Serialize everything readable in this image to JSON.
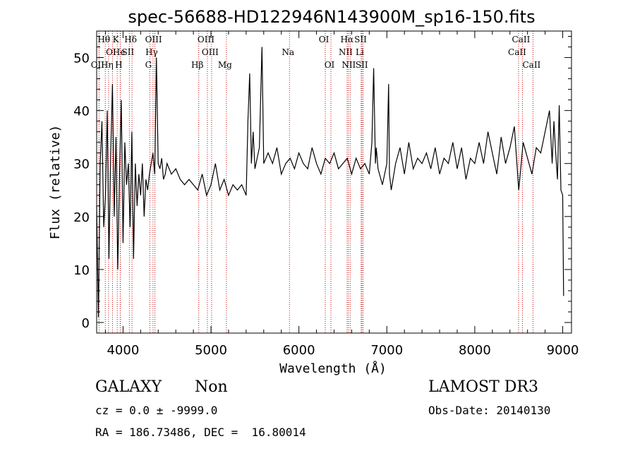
{
  "chart_data": {
    "type": "line",
    "title": "spec-56688-HD122946N143900M_sp16-150.fits",
    "xlabel": "Wavelength (Å)",
    "ylabel": "Flux (relative)",
    "xlim": [
      3700,
      9100
    ],
    "ylim": [
      -2,
      55
    ],
    "xticks": [
      4000,
      5000,
      6000,
      7000,
      8000,
      9000
    ],
    "yticks": [
      0,
      10,
      20,
      30,
      40,
      50
    ],
    "grid": false,
    "series": [
      {
        "color": "#000000",
        "x": [
          3700,
          3720,
          3740,
          3760,
          3780,
          3800,
          3820,
          3840,
          3860,
          3880,
          3900,
          3920,
          3940,
          3960,
          3980,
          4000,
          4020,
          4040,
          4060,
          4080,
          4100,
          4120,
          4140,
          4160,
          4180,
          4200,
          4220,
          4240,
          4260,
          4280,
          4300,
          4320,
          4340,
          4360,
          4380,
          4400,
          4420,
          4440,
          4460,
          4480,
          4500,
          4550,
          4600,
          4650,
          4700,
          4750,
          4800,
          4850,
          4900,
          4950,
          5000,
          5050,
          5100,
          5150,
          5200,
          5250,
          5300,
          5350,
          5400,
          5420,
          5440,
          5460,
          5480,
          5500,
          5550,
          5580,
          5600,
          5650,
          5700,
          5750,
          5800,
          5850,
          5900,
          5950,
          6000,
          6050,
          6100,
          6150,
          6200,
          6250,
          6300,
          6350,
          6400,
          6450,
          6500,
          6550,
          6600,
          6650,
          6700,
          6750,
          6800,
          6830,
          6850,
          6870,
          6880,
          6900,
          6950,
          7000,
          7020,
          7030,
          7050,
          7100,
          7150,
          7200,
          7250,
          7300,
          7350,
          7400,
          7450,
          7500,
          7550,
          7600,
          7650,
          7700,
          7750,
          7800,
          7850,
          7900,
          7950,
          8000,
          8050,
          8100,
          8150,
          8200,
          8250,
          8300,
          8350,
          8400,
          8450,
          8500,
          8550,
          8600,
          8650,
          8700,
          8750,
          8800,
          8850,
          8880,
          8900,
          8920,
          8940,
          8960,
          8980,
          9000,
          9010
        ],
        "y": [
          22,
          1,
          30,
          38,
          18,
          24,
          40,
          12,
          32,
          45,
          20,
          35,
          10,
          28,
          42,
          15,
          34,
          26,
          30,
          18,
          36,
          12,
          30,
          22,
          28,
          24,
          30,
          20,
          27,
          25,
          28,
          30,
          32,
          28,
          50,
          30,
          29,
          31,
          27,
          28,
          30,
          28,
          29,
          27,
          26,
          27,
          26,
          25,
          28,
          24,
          26,
          30,
          25,
          27,
          24,
          26,
          25,
          26,
          24,
          38,
          47,
          30,
          36,
          29,
          33,
          52,
          30,
          32,
          30,
          33,
          28,
          30,
          31,
          29,
          32,
          30,
          29,
          33,
          30,
          28,
          31,
          30,
          32,
          29,
          30,
          31,
          28,
          31,
          29,
          30,
          28,
          34,
          48,
          30,
          33,
          29,
          26,
          30,
          45,
          28,
          25,
          30,
          33,
          28,
          34,
          29,
          31,
          30,
          32,
          29,
          33,
          28,
          31,
          30,
          34,
          29,
          33,
          27,
          31,
          30,
          34,
          30,
          36,
          32,
          28,
          35,
          30,
          33,
          37,
          25,
          34,
          31,
          28,
          33,
          32,
          36,
          40,
          30,
          38,
          32,
          27,
          41,
          25,
          24,
          5
        ],
        "label_points": [
          3700,
          3705,
          3710,
          3900,
          4000,
          4380,
          5460,
          5580,
          6870,
          7030
        ]
      }
    ],
    "lines": [
      {
        "name": "Hθ",
        "x": 3798,
        "row": 0
      },
      {
        "name": "OI",
        "x": 3880,
        "row": 1
      },
      {
        "name": "OII",
        "x": 3727,
        "row": 2
      },
      {
        "name": "He",
        "x": 3970,
        "row": 1
      },
      {
        "name": "Hη",
        "x": 3835,
        "row": 2
      },
      {
        "name": "K",
        "x": 3934,
        "row": 0
      },
      {
        "name": "H",
        "x": 3968,
        "row": 2
      },
      {
        "name": "SII",
        "x": 4072,
        "row": 1
      },
      {
        "name": "Hδ",
        "x": 4102,
        "row": 0
      },
      {
        "name": "OIII",
        "x": 4363,
        "row": 0
      },
      {
        "name": "Hγ",
        "x": 4341,
        "row": 1
      },
      {
        "name": "G",
        "x": 4305,
        "row": 2
      },
      {
        "name": "OIII",
        "x": 4959,
        "row": 0
      },
      {
        "name": "OIII",
        "x": 5007,
        "row": 1
      },
      {
        "name": "Hβ",
        "x": 4861,
        "row": 2
      },
      {
        "name": "Mg",
        "x": 5175,
        "row": 2
      },
      {
        "name": "Na",
        "x": 5893,
        "row": 1
      },
      {
        "name": "OI",
        "x": 6300,
        "row": 0
      },
      {
        "name": "OI",
        "x": 6364,
        "row": 2
      },
      {
        "name": "Hα",
        "x": 6563,
        "row": 0
      },
      {
        "name": "NII",
        "x": 6548,
        "row": 1
      },
      {
        "name": "NII",
        "x": 6583,
        "row": 2
      },
      {
        "name": "SII",
        "x": 6717,
        "row": 0
      },
      {
        "name": "Li",
        "x": 6708,
        "row": 1
      },
      {
        "name": "SII",
        "x": 6731,
        "row": 2
      },
      {
        "name": "CaII",
        "x": 8542,
        "row": 0
      },
      {
        "name": "CaII",
        "x": 8498,
        "row": 1
      },
      {
        "name": "CaII",
        "x": 8662,
        "row": 2
      }
    ]
  },
  "footer": {
    "class_label": "GALAXY",
    "subclass_label": "Non",
    "survey_label": "LAMOST DR3",
    "cz_text": "cz = 0.0 ± -9999.0",
    "obs_date_text": "Obs-Date: 20140130",
    "radec_text": "RA = 186.73486, DEC =  16.80014"
  }
}
